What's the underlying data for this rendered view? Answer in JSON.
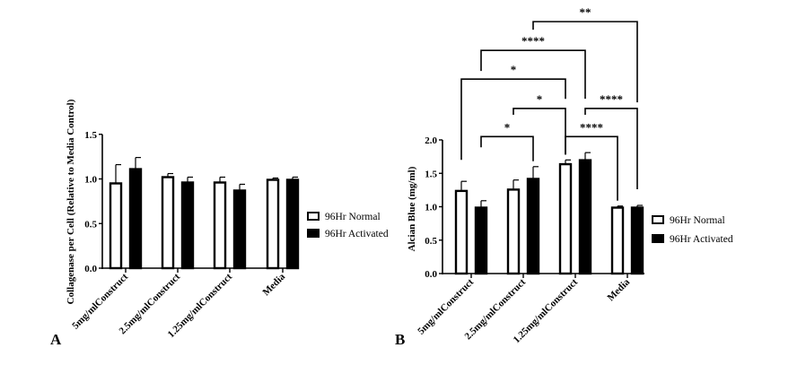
{
  "chart_data": [
    {
      "type": "bar",
      "panel_label": "A",
      "categories": [
        "5mg/mlConstruct",
        "2.5mg/mlConstruct",
        "1.25mg/mlConstruct",
        "Media"
      ],
      "ylabel": "Collagenase per Cell (Relative to Media Control)",
      "ylim": [
        0,
        1.5
      ],
      "yticks": [
        "0.0",
        "0.5",
        "1.0",
        "1.5"
      ],
      "legend_position": "right",
      "series": [
        {
          "name": "96Hr Normal",
          "fill": "#ffffff",
          "values": [
            0.96,
            1.03,
            0.97,
            1.0
          ],
          "error": [
            0.2,
            0.03,
            0.05,
            0.01
          ]
        },
        {
          "name": "96Hr Activated",
          "fill": "#000000",
          "values": [
            1.12,
            0.97,
            0.88,
            1.0
          ],
          "error": [
            0.12,
            0.05,
            0.06,
            0.02
          ]
        }
      ]
    },
    {
      "type": "bar",
      "panel_label": "B",
      "categories": [
        "5mg/mlConstruct",
        "2.5mg/mlConstruct",
        "1.25mg/mlConstruct",
        "Media"
      ],
      "ylabel": "Alcian Blue  (mg/ml)",
      "ylim": [
        0,
        2.0
      ],
      "yticks": [
        "0.0",
        "0.5",
        "1.0",
        "1.5",
        "2.0"
      ],
      "legend_position": "right",
      "series": [
        {
          "name": "96Hr Normal",
          "fill": "#ffffff",
          "values": [
            1.25,
            1.27,
            1.65,
            1.0
          ],
          "error": [
            0.13,
            0.13,
            0.05,
            0.01
          ]
        },
        {
          "name": "96Hr Activated",
          "fill": "#000000",
          "values": [
            1.0,
            1.43,
            1.71,
            1.0
          ],
          "error": [
            0.09,
            0.17,
            0.1,
            0.02
          ]
        }
      ],
      "significance": [
        {
          "from": [
            1,
            1
          ],
          "to": [
            3,
            1
          ],
          "label": "**"
        },
        {
          "from": [
            0,
            1
          ],
          "to": [
            2,
            1
          ],
          "label": "****"
        },
        {
          "from": [
            0,
            0
          ],
          "to": [
            2,
            0
          ],
          "label": "*"
        },
        {
          "from": [
            1,
            0
          ],
          "to": [
            2,
            0
          ],
          "label": "*"
        },
        {
          "from": [
            2,
            1
          ],
          "to": [
            3,
            1
          ],
          "label": "****"
        },
        {
          "from": [
            0,
            1
          ],
          "to": [
            1,
            1
          ],
          "label": "*"
        },
        {
          "from": [
            2,
            0
          ],
          "to": [
            3,
            0
          ],
          "label": "****"
        }
      ]
    }
  ]
}
